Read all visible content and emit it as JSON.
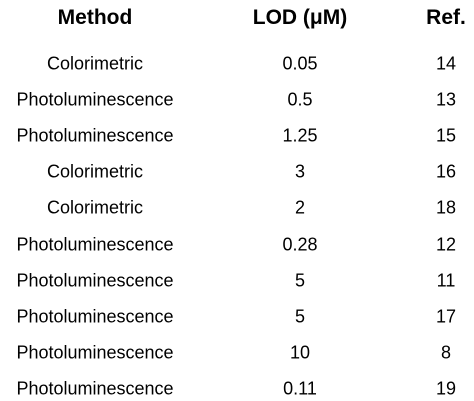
{
  "table": {
    "header": [
      "Method",
      "LOD (μM)",
      "Ref."
    ],
    "rows": [
      [
        "Colorimetric",
        "0.05",
        "14"
      ],
      [
        "Photoluminescence",
        "0.5",
        "13"
      ],
      [
        "Photoluminescence",
        "1.25",
        "15"
      ],
      [
        "Colorimetric",
        "3",
        "16"
      ],
      [
        "Colorimetric",
        "2",
        "18"
      ],
      [
        "Photoluminescence",
        "0.28",
        "12"
      ],
      [
        "Photoluminescence",
        "5",
        "11"
      ],
      [
        "Photoluminescence",
        "5",
        "17"
      ],
      [
        "Photoluminescence",
        "10",
        "8"
      ],
      [
        "Photoluminescence",
        "0.11",
        "19"
      ]
    ]
  }
}
